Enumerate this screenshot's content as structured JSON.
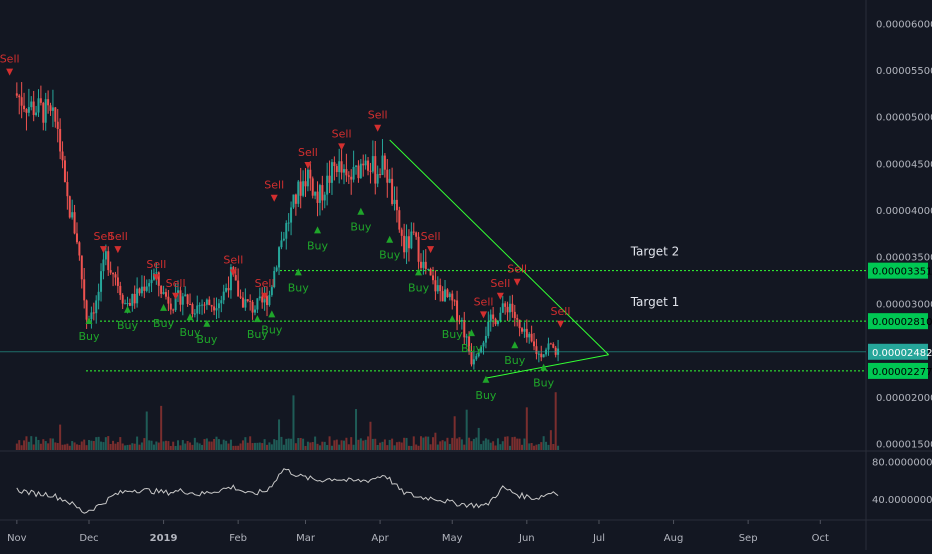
{
  "chart_data": [
    {
      "type": "candlestick",
      "x_axis": {
        "tick_labels": [
          "Nov",
          "Dec",
          "2019",
          "Feb",
          "Mar",
          "Apr",
          "May",
          "Jun",
          "Jul",
          "Aug",
          "Sep",
          "Oct"
        ],
        "tick_dates": [
          "2018-11-01",
          "2018-12-01",
          "2019-01-01",
          "2019-02-01",
          "2019-03-01",
          "2019-04-01",
          "2019-05-01",
          "2019-06-01",
          "2019-07-01",
          "2019-08-01",
          "2019-09-01",
          "2019-10-01"
        ],
        "range": [
          "2018-10-25",
          "2019-10-20"
        ]
      },
      "y_axis": {
        "range": [
          1.43e-05,
          6.25e-05
        ],
        "tick_labels": [
          "0.00006000",
          "0.00005500",
          "0.00005000",
          "0.00004500",
          "0.00004000",
          "0.00003500",
          "0.00003000",
          "0.00002000",
          "0.00001500"
        ],
        "tick_values": [
          6e-05,
          5.5e-05,
          5e-05,
          4.5e-05,
          4e-05,
          3.5e-05,
          3e-05,
          2e-05,
          1.5e-05
        ],
        "side": "right"
      },
      "series_close": [
        [
          "2018-11-01",
          5.25e-05
        ],
        [
          "2018-11-07",
          5.12e-05
        ],
        [
          "2018-11-14",
          5.05e-05
        ],
        [
          "2018-11-19",
          4.9e-05
        ],
        [
          "2018-11-22",
          4.2e-05
        ],
        [
          "2018-11-27",
          3.7e-05
        ],
        [
          "2018-12-01",
          2.85e-05
        ],
        [
          "2018-12-05",
          3e-05
        ],
        [
          "2018-12-09",
          3.5e-05
        ],
        [
          "2018-12-13",
          3.3e-05
        ],
        [
          "2018-12-17",
          3e-05
        ],
        [
          "2018-12-21",
          3.05e-05
        ],
        [
          "2018-12-25",
          3.2e-05
        ],
        [
          "2018-12-29",
          3.3e-05
        ],
        [
          "2019-01-02",
          3.1e-05
        ],
        [
          "2019-01-06",
          3e-05
        ],
        [
          "2019-01-10",
          3.1e-05
        ],
        [
          "2019-01-14",
          2.95e-05
        ],
        [
          "2019-01-18",
          3e-05
        ],
        [
          "2019-01-22",
          3e-05
        ],
        [
          "2019-01-26",
          3.05e-05
        ],
        [
          "2019-01-30",
          3.3e-05
        ],
        [
          "2019-02-03",
          3.05e-05
        ],
        [
          "2019-02-08",
          2.95e-05
        ],
        [
          "2019-02-12",
          3e-05
        ],
        [
          "2019-02-15",
          3.1e-05
        ],
        [
          "2019-02-19",
          3.6e-05
        ],
        [
          "2019-02-23",
          3.9e-05
        ],
        [
          "2019-02-27",
          4.2e-05
        ],
        [
          "2019-03-03",
          4.4e-05
        ],
        [
          "2019-03-07",
          4.1e-05
        ],
        [
          "2019-03-11",
          4.3e-05
        ],
        [
          "2019-03-15",
          4.5e-05
        ],
        [
          "2019-03-19",
          4.3e-05
        ],
        [
          "2019-03-23",
          4.4e-05
        ],
        [
          "2019-03-27",
          4.6e-05
        ],
        [
          "2019-03-31",
          4.4e-05
        ],
        [
          "2019-04-04",
          4.5e-05
        ],
        [
          "2019-04-08",
          4e-05
        ],
        [
          "2019-04-12",
          3.6e-05
        ],
        [
          "2019-04-16",
          3.7e-05
        ],
        [
          "2019-04-20",
          3.4e-05
        ],
        [
          "2019-04-24",
          3.2e-05
        ],
        [
          "2019-04-28",
          3.1e-05
        ],
        [
          "2019-05-02",
          3e-05
        ],
        [
          "2019-05-06",
          2.8e-05
        ],
        [
          "2019-05-10",
          2.4e-05
        ],
        [
          "2019-05-14",
          2.6e-05
        ],
        [
          "2019-05-18",
          2.8e-05
        ],
        [
          "2019-05-22",
          2.9e-05
        ],
        [
          "2019-05-26",
          3e-05
        ],
        [
          "2019-05-30",
          2.7e-05
        ],
        [
          "2019-06-03",
          2.6e-05
        ],
        [
          "2019-06-07",
          2.45e-05
        ],
        [
          "2019-06-11",
          2.55e-05
        ],
        [
          "2019-06-15",
          2.48e-05
        ]
      ],
      "horizontal_lines": [
        {
          "value": 3.351e-05,
          "label": "0.00003351",
          "name": "Target 2"
        },
        {
          "value": 2.81e-05,
          "label": "0.00002810",
          "name": "Target 1"
        },
        {
          "value": 2.277e-05,
          "label": "0.00002277"
        }
      ],
      "current_price": {
        "value": 2.482e-05,
        "label": "0.00002482"
      },
      "trendlines": [
        {
          "from": [
            "2019-04-05",
            4.75e-05
          ],
          "to": [
            "2019-07-05",
            2.45e-05
          ]
        },
        {
          "from": [
            "2019-05-15",
            2.2e-05
          ],
          "to": [
            "2019-07-05",
            2.45e-05
          ]
        }
      ],
      "signals": [
        {
          "label": "Sell",
          "date": "2018-10-29",
          "value": 5.6e-05
        },
        {
          "label": "Buy",
          "date": "2018-12-01",
          "value": 2.78e-05
        },
        {
          "label": "Sell",
          "date": "2018-12-07",
          "value": 3.7e-05
        },
        {
          "label": "Sell",
          "date": "2018-12-13",
          "value": 3.7e-05
        },
        {
          "label": "Buy",
          "date": "2018-12-17",
          "value": 2.9e-05
        },
        {
          "label": "Buy",
          "date": "2019-01-01",
          "value": 2.92e-05
        },
        {
          "label": "Sell",
          "date": "2018-12-29",
          "value": 3.4e-05
        },
        {
          "label": "Buy",
          "date": "2019-01-12",
          "value": 2.82e-05
        },
        {
          "label": "Sell",
          "date": "2019-01-06",
          "value": 3.2e-05
        },
        {
          "label": "Buy",
          "date": "2019-01-19",
          "value": 2.75e-05
        },
        {
          "label": "Sell",
          "date": "2019-01-30",
          "value": 3.45e-05
        },
        {
          "label": "Buy",
          "date": "2019-02-09",
          "value": 2.8e-05
        },
        {
          "label": "Sell",
          "date": "2019-02-12",
          "value": 3.2e-05
        },
        {
          "label": "Buy",
          "date": "2019-02-15",
          "value": 2.85e-05
        },
        {
          "label": "Sell",
          "date": "2019-02-16",
          "value": 4.25e-05
        },
        {
          "label": "Buy",
          "date": "2019-02-26",
          "value": 3.3e-05
        },
        {
          "label": "Sell",
          "date": "2019-03-02",
          "value": 4.6e-05
        },
        {
          "label": "Buy",
          "date": "2019-03-06",
          "value": 3.75e-05
        },
        {
          "label": "Sell",
          "date": "2019-03-16",
          "value": 4.8e-05
        },
        {
          "label": "Buy",
          "date": "2019-03-24",
          "value": 3.95e-05
        },
        {
          "label": "Sell",
          "date": "2019-03-31",
          "value": 5e-05
        },
        {
          "label": "Buy",
          "date": "2019-04-05",
          "value": 3.65e-05
        },
        {
          "label": "Buy",
          "date": "2019-04-17",
          "value": 3.3e-05
        },
        {
          "label": "Sell",
          "date": "2019-04-22",
          "value": 3.7e-05
        },
        {
          "label": "Buy",
          "date": "2019-05-01",
          "value": 2.8e-05
        },
        {
          "label": "Buy",
          "date": "2019-05-09",
          "value": 2.65e-05
        },
        {
          "label": "Sell",
          "date": "2019-05-14",
          "value": 3e-05
        },
        {
          "label": "Buy",
          "date": "2019-05-15",
          "value": 2.15e-05
        },
        {
          "label": "Sell",
          "date": "2019-05-21",
          "value": 3.2e-05
        },
        {
          "label": "Buy",
          "date": "2019-05-27",
          "value": 2.52e-05
        },
        {
          "label": "Sell",
          "date": "2019-05-28",
          "value": 3.35e-05
        },
        {
          "label": "Buy",
          "date": "2019-06-08",
          "value": 2.28e-05
        },
        {
          "label": "Sell",
          "date": "2019-06-15",
          "value": 2.9e-05
        }
      ],
      "annotations": [
        {
          "text": "Target 2",
          "value": 3.351e-05
        },
        {
          "text": "Target 1",
          "value": 2.81e-05
        }
      ],
      "colors": {
        "background": "#131722",
        "up": "#26a69a",
        "down": "#ef5350",
        "buy": "#1fa52a",
        "sell": "#d32f2f",
        "line": "#33ff33",
        "current": "#26a69a",
        "grid": "#1e2230"
      }
    },
    {
      "type": "line",
      "name": "oscillator",
      "y_axis": {
        "range": [
          20,
          90
        ],
        "tick_labels": [
          "80.00000000",
          "40.00000000"
        ],
        "tick_values": [
          80,
          40
        ],
        "side": "right"
      },
      "series": [
        [
          "2018-11-01",
          50
        ],
        [
          "2018-11-08",
          46
        ],
        [
          "2018-11-15",
          45
        ],
        [
          "2018-11-22",
          38
        ],
        [
          "2018-11-29",
          26
        ],
        [
          "2018-12-05",
          33
        ],
        [
          "2018-12-12",
          45
        ],
        [
          "2018-12-19",
          50
        ],
        [
          "2018-12-26",
          49
        ],
        [
          "2019-01-02",
          47
        ],
        [
          "2019-01-09",
          49
        ],
        [
          "2019-01-16",
          45
        ],
        [
          "2019-01-23",
          49
        ],
        [
          "2019-01-30",
          53
        ],
        [
          "2019-02-06",
          45
        ],
        [
          "2019-02-13",
          49
        ],
        [
          "2019-02-20",
          72
        ],
        [
          "2019-02-27",
          64
        ],
        [
          "2019-03-06",
          60
        ],
        [
          "2019-03-13",
          62
        ],
        [
          "2019-03-20",
          59
        ],
        [
          "2019-03-27",
          60
        ],
        [
          "2019-04-03",
          66
        ],
        [
          "2019-04-10",
          48
        ],
        [
          "2019-04-17",
          42
        ],
        [
          "2019-04-24",
          41
        ],
        [
          "2019-05-01",
          36
        ],
        [
          "2019-05-08",
          34
        ],
        [
          "2019-05-15",
          33
        ],
        [
          "2019-05-22",
          52
        ],
        [
          "2019-05-29",
          44
        ],
        [
          "2019-06-05",
          41
        ],
        [
          "2019-06-12",
          48
        ],
        [
          "2019-06-15",
          46
        ]
      ],
      "color": "#c8c8c8"
    }
  ]
}
